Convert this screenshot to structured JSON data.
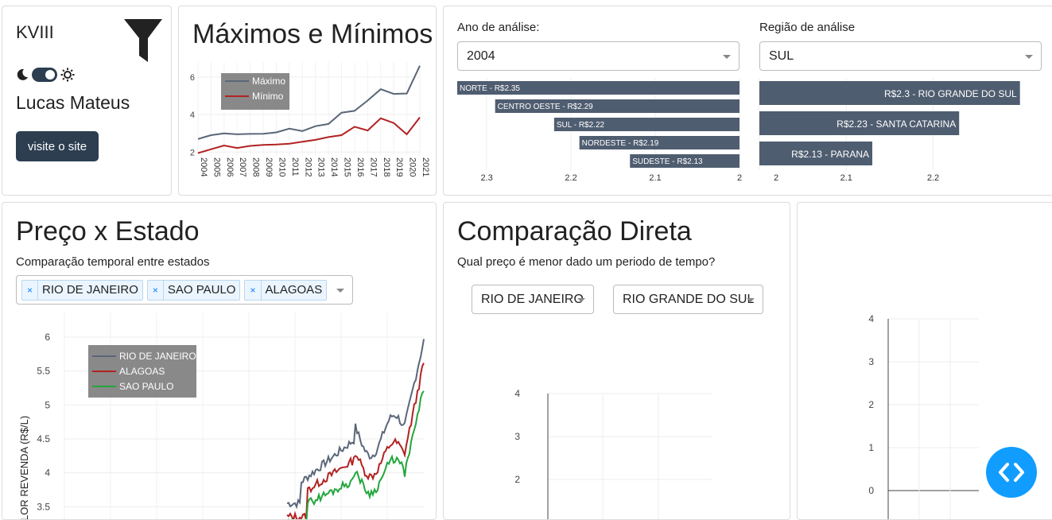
{
  "sidebar": {
    "brand": "KVIII",
    "author": "Lucas Mateus",
    "site_button": "visite o site",
    "icons": [
      "filter-icon",
      "moon-icon",
      "sun-icon"
    ]
  },
  "maxmin": {
    "title": "Máximos e Mínimos",
    "chart_data": {
      "type": "line",
      "x": [
        "2004",
        "2005",
        "2006",
        "2007",
        "2008",
        "2009",
        "2010",
        "2011",
        "2012",
        "2013",
        "2014",
        "2015",
        "2016",
        "2017",
        "2018",
        "2019",
        "2020",
        "2021"
      ],
      "series": [
        {
          "name": "Máximo",
          "color": "#5a6678",
          "values": [
            2.7,
            2.9,
            3.0,
            2.95,
            2.97,
            2.98,
            3.05,
            3.25,
            3.12,
            3.38,
            3.5,
            4.1,
            4.2,
            4.75,
            5.35,
            5.1,
            5.12,
            6.6
          ]
        },
        {
          "name": "Mínimo",
          "color": "#b22222",
          "values": [
            1.95,
            2.15,
            2.35,
            2.22,
            2.33,
            2.38,
            2.4,
            2.45,
            2.55,
            2.65,
            2.8,
            2.9,
            3.35,
            3.15,
            3.8,
            3.55,
            2.95,
            3.85
          ]
        }
      ],
      "yticks": [
        "2",
        "4",
        "6"
      ],
      "ylim": [
        1.8,
        6.8
      ]
    }
  },
  "analysis": {
    "year_label": "Ano de análise:",
    "year_value": "2004",
    "region_label": "Região de análise",
    "region_value": "SUL",
    "regions_chart": {
      "type": "bar",
      "categories": [
        "NORTE - R$2.35",
        "CENTRO OESTE - R$2.29",
        "SUL - R$2.22",
        "NORDESTE - R$2.19",
        "SUDESTE - R$2.13"
      ],
      "values": [
        2.35,
        2.29,
        2.22,
        2.19,
        2.13
      ],
      "xticks": [
        "2.3",
        "2.2",
        "2.1",
        "2"
      ],
      "xlim": [
        2.0,
        2.335
      ]
    },
    "states_chart": {
      "type": "bar",
      "categories": [
        "R$2.3 - RIO GRANDE DO SUL",
        "R$2.23 - SANTA CATARINA",
        "R$2.13 - PARANA"
      ],
      "values": [
        2.3,
        2.23,
        2.13
      ],
      "xticks": [
        "2",
        "2.1",
        "2.2"
      ],
      "xlim": [
        2.0,
        2.325
      ]
    }
  },
  "price_state": {
    "title": "Preço x Estado",
    "subtitle": "Comparação temporal entre estados",
    "tags": [
      "RIO DE JANEIRO",
      "SAO PAULO",
      "ALAGOAS"
    ],
    "chart_data": {
      "type": "line",
      "ylabel": "VALOR REVENDA (R$/L)",
      "ylabel_visible": "LOR REVENDA (R$/L)",
      "yticks": [
        "6",
        "5.5",
        "5",
        "4.5",
        "4",
        "3.5"
      ],
      "legend": [
        {
          "name": "RIO DE JANEIRO",
          "color": "#5a6678"
        },
        {
          "name": "ALAGOAS",
          "color": "#b22222"
        },
        {
          "name": "SAO PAULO",
          "color": "#22a63c"
        }
      ]
    }
  },
  "compare": {
    "title": "Comparação Direta",
    "subtitle": "Qual preço é menor dado um periodo de tempo?",
    "select_a": "RIO DE JANEIRO",
    "select_b": "RIO GRANDE DO SUL",
    "yticks": [
      "4",
      "3",
      "2"
    ]
  },
  "right_panel": {
    "yticks": [
      "4",
      "3",
      "2",
      "1",
      "0"
    ]
  }
}
